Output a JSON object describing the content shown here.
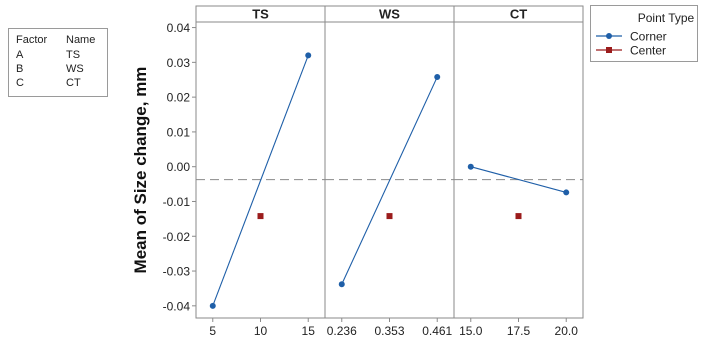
{
  "chart_data": {
    "type": "line",
    "ylabel": "Mean of Size change, mm",
    "ylim": [
      -0.0435,
      0.0416
    ],
    "yticks": [
      -0.04,
      -0.03,
      -0.02,
      -0.01,
      0.0,
      0.01,
      0.02,
      0.03,
      0.04
    ],
    "ytick_labels": [
      "-0.04",
      "-0.03",
      "-0.02",
      "-0.01",
      "0.00",
      "0.01",
      "0.02",
      "0.03",
      "0.04"
    ],
    "reference_line": -0.0037,
    "panels": [
      {
        "title": "TS",
        "x_labels": [
          "5",
          "10",
          "15"
        ],
        "corner": [
          {
            "x": "5",
            "y": -0.04
          },
          {
            "x": "15",
            "y": 0.032
          }
        ],
        "center": [
          {
            "x": "10",
            "y": -0.0142
          }
        ]
      },
      {
        "title": "WS",
        "x_labels": [
          "0.236",
          "0.353",
          "0.461"
        ],
        "corner": [
          {
            "x": "0.236",
            "y": -0.0338
          },
          {
            "x": "0.461",
            "y": 0.0258
          }
        ],
        "center": [
          {
            "x": "0.353",
            "y": -0.0142
          }
        ]
      },
      {
        "title": "CT",
        "x_labels": [
          "15.0",
          "17.5",
          "20.0"
        ],
        "corner": [
          {
            "x": "15.0",
            "y": 0.0
          },
          {
            "x": "20.0",
            "y": -0.0074
          }
        ],
        "center": [
          {
            "x": "17.5",
            "y": -0.0142
          }
        ]
      }
    ],
    "legend": {
      "title": "Point Type",
      "placement": "top-right",
      "items": [
        {
          "label": "Corner",
          "color": "#1f5fa8",
          "marker": "circle"
        },
        {
          "label": "Center",
          "color": "#9b1c1c",
          "marker": "square"
        }
      ]
    }
  },
  "factor_table": {
    "headers": [
      "Factor",
      "Name"
    ],
    "rows": [
      [
        "A",
        "TS"
      ],
      [
        "B",
        "WS"
      ],
      [
        "C",
        "CT"
      ]
    ]
  },
  "colors": {
    "corner": "#1f5fa8",
    "center": "#9b1c1c",
    "axis": "#8a8a8a",
    "reference": "#8a8a8a"
  }
}
